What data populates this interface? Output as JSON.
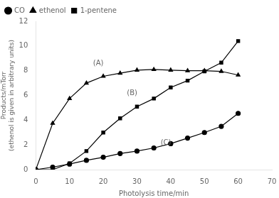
{
  "chart_data": {
    "type": "line",
    "xlabel": "Photolysis time/min",
    "ylabel": "Products/mTorr\n(ethenol is given in arbitrary units)",
    "xlim": [
      0,
      70
    ],
    "ylim": [
      0,
      12
    ],
    "xticks": [
      0,
      10,
      20,
      30,
      40,
      50,
      60,
      70
    ],
    "yticks": [
      0,
      2,
      4,
      6,
      8,
      10,
      12
    ],
    "grid": false,
    "legend": "upper left",
    "x": [
      0,
      5,
      10,
      15,
      20,
      25,
      30,
      35,
      40,
      45,
      50,
      55,
      60
    ],
    "series": [
      {
        "name": "CO",
        "color": "#000000",
        "marker": "circle",
        "line_style": "solid",
        "values": [
          0,
          0.2,
          0.45,
          0.75,
          1.0,
          1.3,
          1.5,
          1.75,
          2.1,
          2.55,
          3.0,
          3.5,
          4.55
        ]
      },
      {
        "name": "ethenol",
        "color": "#000000",
        "marker": "triangle",
        "line_style": "solid",
        "values": [
          0,
          3.75,
          5.75,
          7.0,
          7.55,
          7.8,
          8.05,
          8.1,
          8.05,
          8.0,
          8.0,
          7.95,
          7.65
        ]
      },
      {
        "name": "1-pentene",
        "color": "#000000",
        "marker": "square",
        "line_style": "solid",
        "values": [
          0,
          0.0,
          0.5,
          1.5,
          3.0,
          4.15,
          5.1,
          5.75,
          6.65,
          7.2,
          7.95,
          8.65,
          10.4
        ]
      }
    ],
    "annotations": [
      {
        "text": "(A)",
        "x": 17,
        "y": 8.3
      },
      {
        "text": "(B)",
        "x": 27,
        "y": 5.9
      },
      {
        "text": "(C)",
        "x": 37,
        "y": 1.85
      }
    ]
  }
}
